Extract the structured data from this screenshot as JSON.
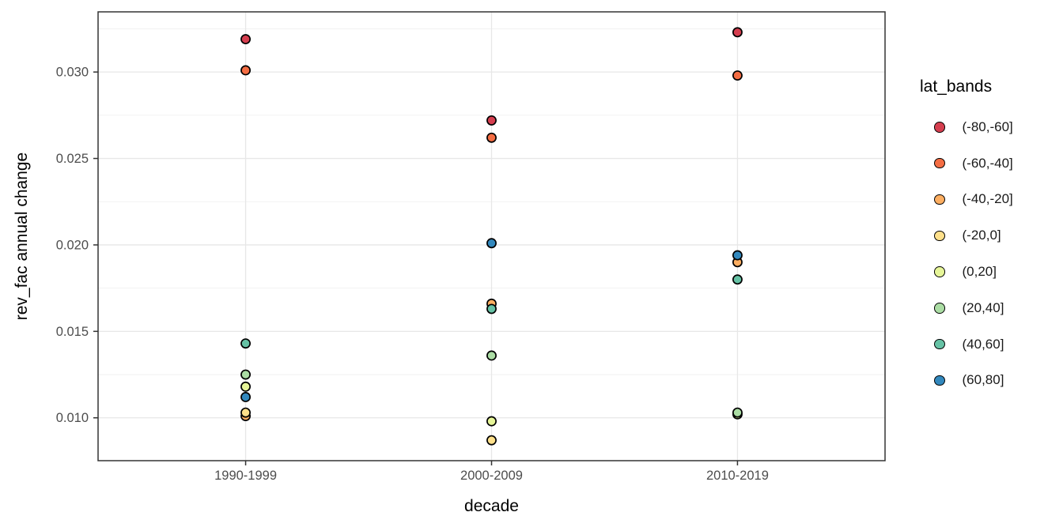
{
  "chart_data": {
    "type": "scatter",
    "title": "",
    "xlabel": "decade",
    "ylabel": "rev_fac annual change",
    "categories": [
      "1990-1999",
      "2000-2009",
      "2010-2019"
    ],
    "y_ticks": [
      {
        "value": 0.01,
        "label": "0.010"
      },
      {
        "value": 0.015,
        "label": "0.015"
      },
      {
        "value": 0.02,
        "label": "0.020"
      },
      {
        "value": 0.025,
        "label": "0.025"
      },
      {
        "value": 0.03,
        "label": "0.030"
      }
    ],
    "y_minor_gridlines": [
      0.0075,
      0.0125,
      0.0175,
      0.0225,
      0.0275,
      0.0325
    ],
    "ylim": [
      0.00752,
      0.03348
    ],
    "grid": true,
    "legend": {
      "title": "lat_bands",
      "position": "right"
    },
    "series": [
      {
        "name": "(-80,-60]",
        "color": "#d53e4f",
        "values": [
          0.0319,
          0.0272,
          0.0323
        ]
      },
      {
        "name": "(-60,-40]",
        "color": "#f46d43",
        "values": [
          0.0301,
          0.0262,
          0.0298
        ]
      },
      {
        "name": "(-40,-20]",
        "color": "#fdae61",
        "values": [
          0.0101,
          0.0166,
          0.019
        ]
      },
      {
        "name": "(-20,0]",
        "color": "#fee08b",
        "values": [
          0.0103,
          0.0087,
          null
        ]
      },
      {
        "name": "(0,20]",
        "color": "#e6f598",
        "values": [
          0.0118,
          0.0098,
          0.0102
        ]
      },
      {
        "name": "(20,40]",
        "color": "#abdda4",
        "values": [
          0.0125,
          0.0136,
          0.0103
        ]
      },
      {
        "name": "(40,60]",
        "color": "#66c2a5",
        "values": [
          0.0143,
          0.0163,
          0.018
        ]
      },
      {
        "name": "(60,80]",
        "color": "#3288bd",
        "values": [
          0.0112,
          0.0201,
          0.0194
        ]
      }
    ],
    "style_colors": {
      "background": "#ffffff",
      "grid_major": "#e7e7e7",
      "grid_minor": "#efefef",
      "panel_border": "#333333",
      "tick_mark": "#333333",
      "tick_text": "#4d4d4d",
      "point_stroke": "#000000"
    }
  }
}
